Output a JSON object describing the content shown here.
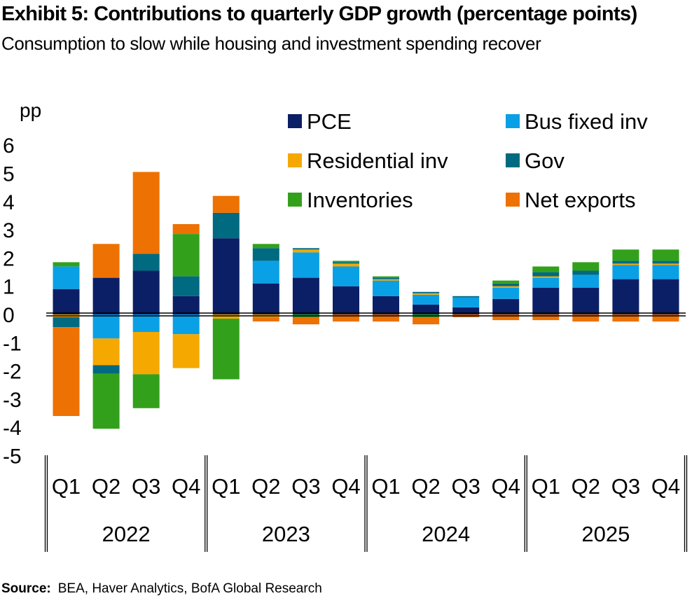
{
  "title": "Exhibit 5: Contributions to quarterly GDP growth (percentage points)",
  "subtitle": "Consumption to slow while housing and investment spending recover",
  "source": {
    "label": "Source:",
    "text": "BEA, Haver Analytics, BofA Global Research"
  },
  "chart_data": {
    "type": "bar",
    "stacked": true,
    "ylabel": "pp",
    "ylim": [
      -5,
      6
    ],
    "yticks": [
      6,
      5,
      4,
      3,
      2,
      1,
      0,
      -1,
      -2,
      -3,
      -4,
      -5
    ],
    "categories": [
      "Q1",
      "Q2",
      "Q3",
      "Q4",
      "Q1",
      "Q2",
      "Q3",
      "Q4",
      "Q1",
      "Q2",
      "Q3",
      "Q4",
      "Q1",
      "Q2",
      "Q3",
      "Q4"
    ],
    "groups": [
      {
        "label": "2022",
        "count": 4
      },
      {
        "label": "2023",
        "count": 4
      },
      {
        "label": "2024",
        "count": 4
      },
      {
        "label": "2025",
        "count": 4
      }
    ],
    "legend_position": "top-right",
    "series": [
      {
        "name": "PCE",
        "color": "#0b1f66",
        "values": [
          0.9,
          1.3,
          1.55,
          0.65,
          2.7,
          1.1,
          1.3,
          1.0,
          0.65,
          0.35,
          0.25,
          0.55,
          0.95,
          0.95,
          1.25,
          1.25
        ]
      },
      {
        "name": "Bus fixed inv",
        "color": "#0aa0e6",
        "values": [
          0.8,
          -0.85,
          -0.62,
          -0.7,
          0.0,
          0.8,
          0.9,
          0.7,
          0.55,
          0.35,
          0.35,
          0.4,
          0.35,
          0.45,
          0.5,
          0.5
        ]
      },
      {
        "name": "Residential inv",
        "color": "#f5a800",
        "values": [
          -0.1,
          -0.95,
          -1.5,
          -1.2,
          -0.15,
          -0.1,
          0.1,
          0.1,
          0.05,
          0.05,
          0.0,
          0.05,
          0.05,
          0.0,
          0.05,
          0.05
        ]
      },
      {
        "name": "Gov",
        "color": "#006a80",
        "values": [
          -0.35,
          -0.3,
          0.6,
          0.7,
          0.9,
          0.45,
          0.05,
          0.05,
          0.05,
          0.05,
          0.05,
          0.1,
          0.15,
          0.15,
          0.1,
          0.1
        ]
      },
      {
        "name": "Inventories",
        "color": "#33a01c",
        "values": [
          0.15,
          -1.95,
          -1.2,
          1.5,
          -2.15,
          0.15,
          -0.1,
          0.05,
          0.05,
          -0.1,
          0.0,
          0.1,
          0.2,
          0.3,
          0.4,
          0.4
        ]
      },
      {
        "name": "Net exports",
        "color": "#ee7103",
        "values": [
          -3.15,
          1.2,
          2.9,
          0.35,
          0.6,
          -0.15,
          -0.25,
          -0.25,
          -0.25,
          -0.25,
          -0.1,
          -0.2,
          -0.2,
          -0.25,
          -0.25,
          -0.25
        ]
      }
    ]
  }
}
